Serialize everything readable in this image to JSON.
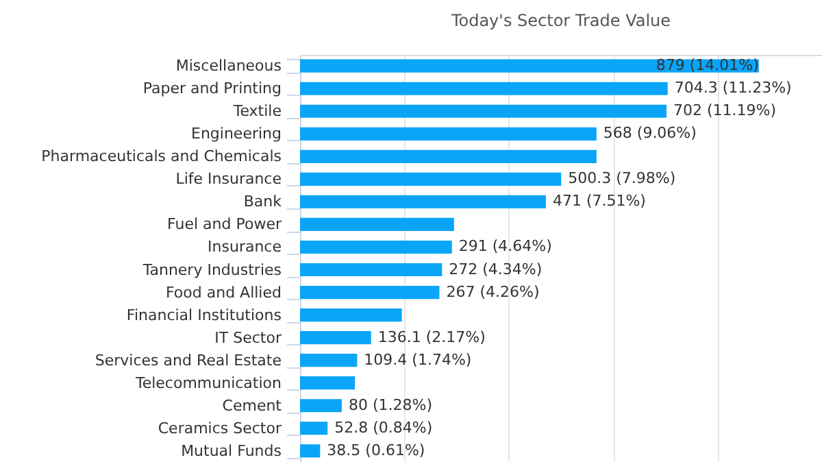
{
  "chart_data": {
    "type": "bar",
    "orientation": "horizontal",
    "title": "Today's Sector Trade Value",
    "categories": [
      "Miscellaneous",
      "Paper and Printing",
      "Textile",
      "Engineering",
      "Pharmaceuticals and Chemicals",
      "Life Insurance",
      "Bank",
      "Fuel and Power",
      "Insurance",
      "Tannery Industries",
      "Food and Allied",
      "Financial Institutions",
      "IT Sector",
      "Services and Real Estate",
      "Telecommunication",
      "Cement",
      "Ceramics Sector",
      "Mutual Funds"
    ],
    "values": [
      879,
      704.3,
      702,
      568,
      568,
      500.3,
      471,
      295,
      291,
      272,
      267,
      195,
      136.1,
      109.4,
      105,
      80,
      52.8,
      38.5
    ],
    "value_labels": [
      "879 (14.01%)",
      "704.3 (11.23%)",
      "702 (11.19%)",
      "568 (9.06%)",
      null,
      "500.3 (7.98%)",
      "471 (7.51%)",
      null,
      "291 (4.64%)",
      "272 (4.34%)",
      "267 (4.26%)",
      null,
      "136.1 (2.17%)",
      "109.4 (1.74%)",
      null,
      "80 (1.28%)",
      "52.8 (0.84%)",
      "38.5 (0.61%)"
    ],
    "color": "#0aa5f7",
    "xlim": [
      0,
      1000
    ],
    "xticks": [
      {
        "value": 0,
        "label": null
      },
      {
        "value": 200,
        "label": null
      },
      {
        "value": 400,
        "label": null
      },
      {
        "value": 600,
        "label": null
      },
      {
        "value": 800,
        "label": null
      }
    ],
    "grid": "x",
    "tick_labels": "y"
  }
}
